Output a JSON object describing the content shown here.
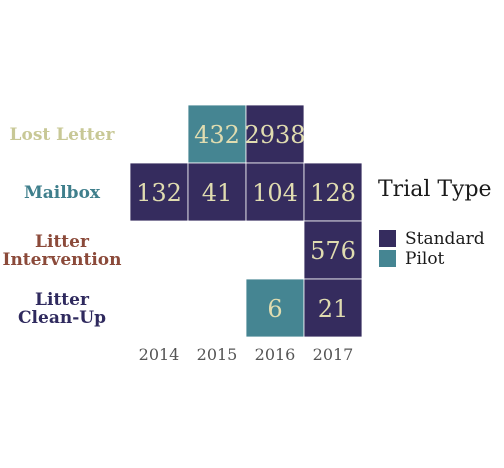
{
  "chart_data": {
    "type": "heatmap",
    "x": [
      "2014",
      "2015",
      "2016",
      "2017"
    ],
    "rows": [
      {
        "lines": [
          "Lost Letter"
        ],
        "color": "#c8c896"
      },
      {
        "lines": [
          "Mailbox"
        ],
        "color": "#3f7f8c"
      },
      {
        "lines": [
          "Litter",
          "Intervention"
        ],
        "color": "#8b4a3a"
      },
      {
        "lines": [
          "Litter",
          "Clean-Up"
        ],
        "color": "#2f2a5e"
      }
    ],
    "cells": [
      {
        "row": 0,
        "col": 1,
        "value": 432,
        "type": "Pilot"
      },
      {
        "row": 0,
        "col": 2,
        "value": 2938,
        "type": "Standard"
      },
      {
        "row": 1,
        "col": 0,
        "value": 132,
        "type": "Standard"
      },
      {
        "row": 1,
        "col": 1,
        "value": 41,
        "type": "Standard"
      },
      {
        "row": 1,
        "col": 2,
        "value": 104,
        "type": "Standard"
      },
      {
        "row": 1,
        "col": 3,
        "value": 128,
        "type": "Standard"
      },
      {
        "row": 2,
        "col": 3,
        "value": 576,
        "type": "Standard"
      },
      {
        "row": 3,
        "col": 2,
        "value": 6,
        "type": "Pilot"
      },
      {
        "row": 3,
        "col": 3,
        "value": 21,
        "type": "Standard"
      }
    ],
    "legend": {
      "title": "Trial Type",
      "placement": "right",
      "entries": [
        {
          "name": "Standard",
          "color": "#352c5e"
        },
        {
          "name": "Pilot",
          "color": "#458592"
        }
      ]
    },
    "cell_text_color": "#e0dcb0",
    "grid": false
  }
}
